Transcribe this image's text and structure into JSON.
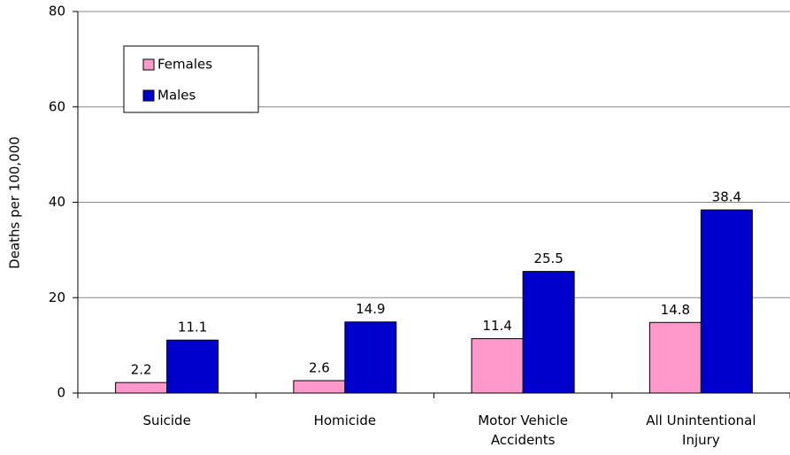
{
  "chart_data": {
    "type": "bar",
    "y_label": "Deaths per 100,000",
    "categories": [
      "Suicide",
      "Homicide",
      "Motor Vehicle Accidents",
      "All Unintentional Injury"
    ],
    "series": [
      {
        "name": "Females",
        "color": "#ff99cc",
        "values": [
          2.2,
          2.6,
          11.4,
          14.8
        ]
      },
      {
        "name": "Males",
        "color": "#0000cc",
        "values": [
          11.1,
          14.9,
          25.5,
          38.4
        ]
      }
    ],
    "ylim": [
      0,
      80
    ],
    "yticks": [
      0,
      20,
      40,
      60,
      80
    ],
    "grid": true
  }
}
